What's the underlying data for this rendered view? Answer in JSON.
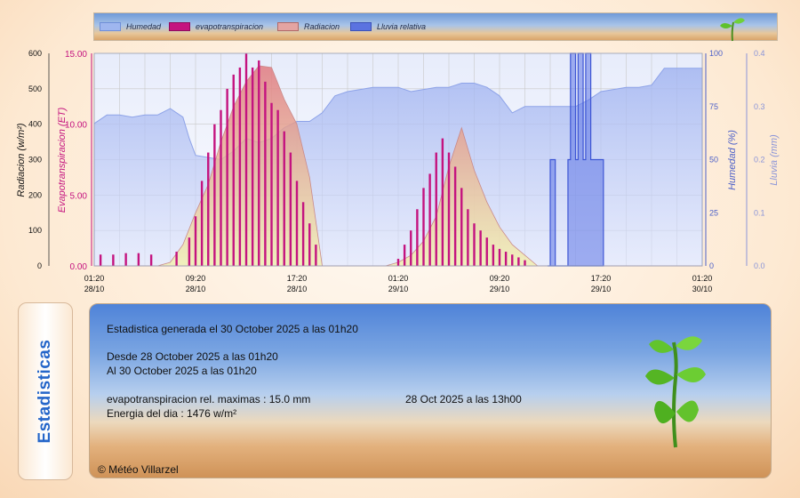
{
  "legend": [
    {
      "label": "Humedad",
      "color": "#9fb6ef",
      "border": "#6f8fd8"
    },
    {
      "label": "evapotranspiracion",
      "color": "#c4137f",
      "border": "#8f0c5c"
    },
    {
      "label": "Radiacion",
      "color": "#e4a4a2",
      "border": "#b06a68"
    },
    {
      "label": "Lluvia relativa",
      "color": "#5b73e0",
      "border": "#3c52b8"
    }
  ],
  "colors": {
    "humidity": "#a9b9f2",
    "et": "#c4137f",
    "radiation": "#e99a98",
    "rain": "#5f76e6",
    "grid": "#c8c8c8"
  },
  "chart_data": {
    "type": "area",
    "x_tick_labels": [
      {
        "time": "01:20",
        "date": "28/10"
      },
      {
        "time": "09:20",
        "date": "28/10"
      },
      {
        "time": "17:20",
        "date": "28/10"
      },
      {
        "time": "01:20",
        "date": "29/10"
      },
      {
        "time": "09:20",
        "date": "29/10"
      },
      {
        "time": "17:20",
        "date": "29/10"
      },
      {
        "time": "01:20",
        "date": "30/10"
      }
    ],
    "x_range_hours": [
      0,
      48
    ],
    "axes": {
      "radiation": {
        "label": "Radiacion (w/m²)",
        "ylim": [
          0,
          600
        ],
        "ticks": [
          "0",
          "100",
          "200",
          "300",
          "400",
          "500",
          "600"
        ],
        "color": "#111111"
      },
      "et": {
        "label": "Evapotranspiracion (ET)",
        "ylim": [
          0,
          15
        ],
        "ticks": [
          "0.00",
          "5.00",
          "10.00",
          "15.00"
        ],
        "color": "#c4137f"
      },
      "humidity": {
        "label": "Humedad (%)",
        "ylim": [
          0,
          100
        ],
        "ticks": [
          "0",
          "25",
          "50",
          "75",
          "100"
        ],
        "color": "#4b5fc8"
      },
      "rain": {
        "label": "Lluvia (mm)",
        "ylim": [
          0,
          0.4
        ],
        "ticks": [
          "0.0",
          "0.1",
          "0.2",
          "0.3",
          "0.4"
        ],
        "color": "#8a94d8"
      }
    },
    "series": [
      {
        "name": "Humedad",
        "x": [
          0,
          1,
          2,
          3,
          4,
          5,
          6,
          7,
          7.5,
          8,
          9,
          10,
          11,
          12,
          13,
          14,
          15,
          16,
          17,
          18,
          19,
          20,
          21,
          22,
          23,
          24,
          25,
          26,
          27,
          28,
          29,
          30,
          31,
          32,
          33,
          34,
          35,
          36,
          37,
          38,
          39,
          40,
          41,
          42,
          43,
          44,
          45,
          46,
          47,
          48
        ],
        "values": [
          67,
          71,
          71,
          70,
          71,
          71,
          74,
          70,
          60,
          52,
          51,
          50,
          54,
          60,
          58,
          60,
          65,
          68,
          68,
          72,
          80,
          82,
          83,
          84,
          84,
          84,
          82,
          83,
          84,
          84,
          86,
          86,
          84,
          80,
          72,
          75,
          75,
          75,
          75,
          75,
          78,
          82,
          83,
          84,
          84,
          85,
          93,
          93,
          93,
          93
        ]
      },
      {
        "name": "Radiacion",
        "x": [
          0,
          5,
          6,
          7,
          8,
          9,
          10,
          11,
          12,
          13,
          14,
          15,
          16,
          17,
          18,
          23,
          24,
          25,
          26,
          27,
          28,
          29,
          30,
          31,
          32,
          33,
          35,
          48
        ],
        "values": [
          0,
          0,
          10,
          60,
          150,
          230,
          350,
          450,
          520,
          565,
          560,
          470,
          400,
          250,
          0,
          0,
          10,
          30,
          70,
          140,
          280,
          390,
          270,
          180,
          110,
          60,
          0,
          0
        ]
      },
      {
        "name": "evapotranspiracion",
        "x": [
          0.5,
          1.5,
          2.5,
          3.5,
          4.5,
          6.5,
          7.5,
          8,
          8.5,
          9,
          9.5,
          10,
          10.5,
          11,
          11.5,
          12,
          12.5,
          13,
          13.5,
          14,
          14.5,
          15,
          15.5,
          16,
          16.5,
          17,
          17.5,
          19,
          24,
          24.5,
          25,
          25.5,
          26,
          26.5,
          27,
          27.5,
          28,
          28.5,
          29,
          29.5,
          30,
          30.5,
          31,
          31.5,
          32,
          32.5,
          33,
          33.5,
          34
        ],
        "values": [
          0.8,
          0.8,
          0.9,
          0.9,
          0.8,
          1.0,
          2.0,
          3.5,
          6.0,
          8.0,
          10.0,
          11.0,
          12.5,
          13.5,
          14.0,
          15.0,
          14.0,
          14.5,
          13.0,
          11.5,
          11.0,
          9.5,
          8.0,
          6.0,
          4.5,
          3.0,
          1.5,
          0,
          0.5,
          1.5,
          2.5,
          4.0,
          5.5,
          6.5,
          8.0,
          9.0,
          8.0,
          7.0,
          5.5,
          4.0,
          3.0,
          2.5,
          2.0,
          1.5,
          1.2,
          1.0,
          0.8,
          0.6,
          0.4
        ]
      },
      {
        "name": "Lluvia relativa",
        "x": [
          35.8,
          36,
          36.2,
          36.4,
          37.2,
          37.4,
          37.6,
          37.8,
          38,
          38.2,
          38.4,
          38.6,
          38.8,
          39,
          39.2,
          39.4,
          39.6,
          39.8,
          40,
          40.2
        ],
        "values": [
          0,
          0.2,
          0.2,
          0,
          0,
          0.2,
          0.4,
          0.4,
          0.2,
          0.4,
          0.4,
          0.2,
          0.4,
          0.4,
          0.2,
          0.2,
          0.2,
          0.2,
          0.2,
          0
        ]
      }
    ],
    "grid": true,
    "legend_position": "top"
  },
  "stats": {
    "tab_label": "Estadisticas",
    "generated": "Estadistica generada el 30 October 2025 a las 01h20",
    "from": "Desde 28 October 2025 a las 01h20",
    "to": "Al 30 October 2025 a las 01h20",
    "et_max": "evapotranspiracion rel. maximas : 15.0 mm",
    "et_max_when": "28 Oct 2025 a las 13h00",
    "energy": "Energia del dia : 1476 w/m²",
    "copyright": "© Météo Villarzel"
  }
}
